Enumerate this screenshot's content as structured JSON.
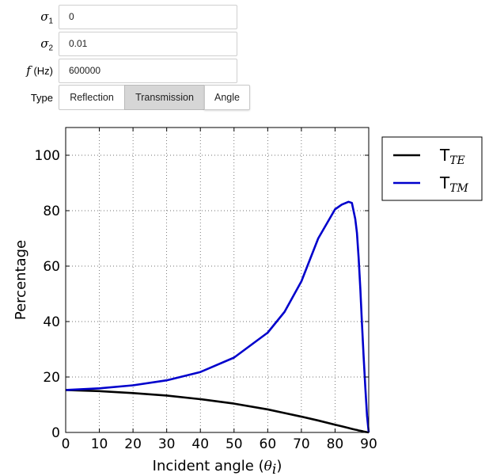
{
  "controls": {
    "sigma1": {
      "symbol": "σ",
      "subscript": "1",
      "value": "0"
    },
    "sigma2": {
      "symbol": "σ",
      "subscript": "2",
      "value": "0.01"
    },
    "freq": {
      "symbol": "f",
      "unit": "(Hz)",
      "value": "600000"
    },
    "type": {
      "label": "Type",
      "options": [
        "Reflection",
        "Transmission",
        "Angle"
      ],
      "selected": "Transmission"
    }
  },
  "chart_data": {
    "type": "line",
    "xlabel": "Incident angle (",
    "xlabel_var": "θ",
    "xlabel_sub": "i",
    "xlabel_close": ")",
    "ylabel": "Percentage",
    "xlim": [
      0,
      90
    ],
    "ylim": [
      0,
      110
    ],
    "xticks": [
      "0",
      "10",
      "20",
      "30",
      "40",
      "50",
      "60",
      "70",
      "80",
      "90"
    ],
    "yticks": [
      "0",
      "20",
      "40",
      "60",
      "80",
      "100"
    ],
    "grid": true,
    "legend_position": "outside-top-right",
    "x": [
      0,
      10,
      20,
      30,
      40,
      50,
      60,
      65,
      70,
      75,
      80,
      82,
      84,
      85,
      86,
      86.5,
      87,
      87.5,
      88,
      88.5,
      89,
      89.5,
      90
    ],
    "series": [
      {
        "name": "T",
        "name_sub": "TE",
        "color": "#000000",
        "values": [
          15.3,
          14.9,
          14.2,
          13.3,
          12.0,
          10.4,
          8.3,
          7.0,
          5.7,
          4.3,
          2.8,
          2.2,
          1.6,
          1.3,
          1.0,
          0.9,
          0.7,
          0.6,
          0.5,
          0.3,
          0.2,
          0.1,
          0.0
        ]
      },
      {
        "name": "T",
        "name_sub": "TM",
        "color": "#0000cc",
        "values": [
          15.3,
          15.9,
          17.0,
          18.8,
          21.8,
          27.0,
          36.0,
          43.5,
          54.5,
          70.0,
          80.5,
          82.2,
          83.2,
          82.8,
          77.0,
          72.0,
          63.0,
          52.0,
          39.0,
          27.0,
          16.0,
          6.0,
          0.0
        ]
      }
    ]
  }
}
